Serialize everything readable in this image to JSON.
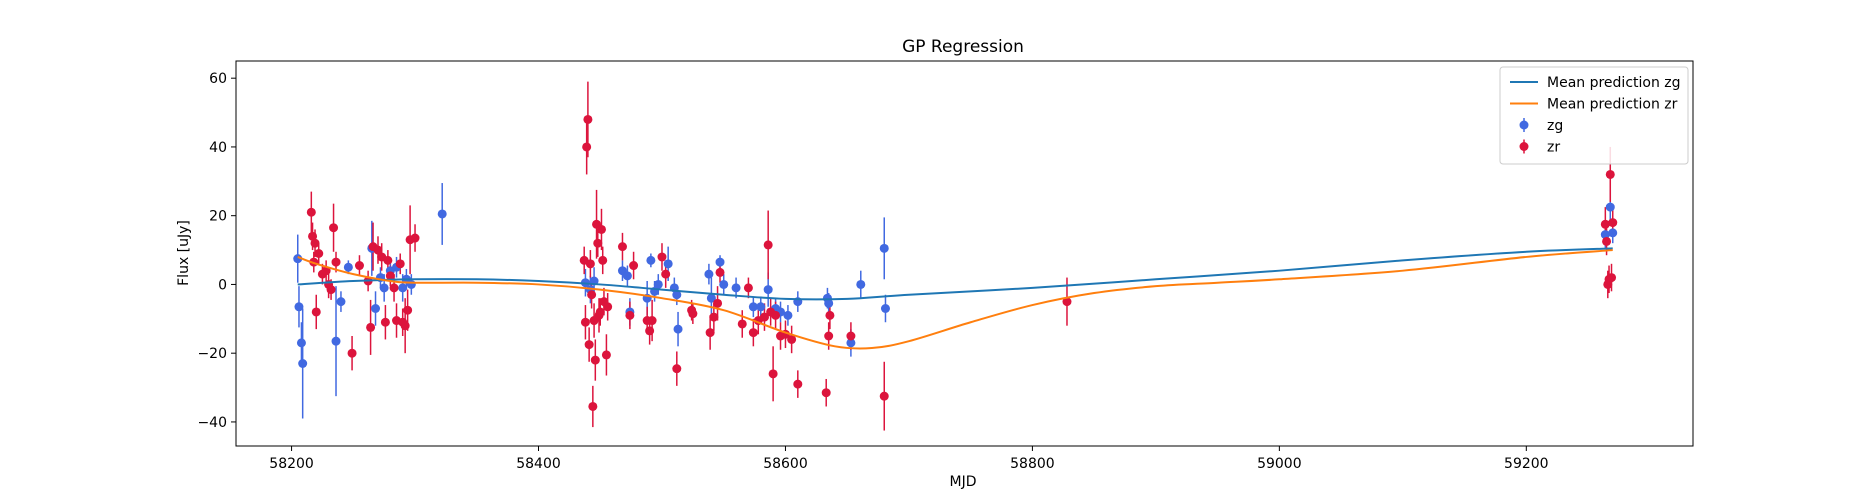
{
  "chart_data": {
    "type": "scatter",
    "title": "GP Regression",
    "xlabel": "MJD",
    "ylabel": "Flux [uJy]",
    "xlim": [
      58155,
      59335
    ],
    "ylim": [
      -47,
      65
    ],
    "xticks": [
      58200,
      58400,
      58600,
      58800,
      59000,
      59200
    ],
    "xtick_labels": [
      "58200",
      "58400",
      "58600",
      "58800",
      "59000",
      "59200"
    ],
    "yticks": [
      -40,
      -20,
      0,
      20,
      40,
      60
    ],
    "ytick_labels": [
      "−40",
      "−20",
      "0",
      "20",
      "40",
      "60"
    ],
    "legend_position": "top-right",
    "legend": [
      {
        "label": "Mean prediction zg",
        "kind": "line",
        "color": "#1f77b4"
      },
      {
        "label": "Mean prediction zr",
        "kind": "line",
        "color": "#ff7f0e"
      },
      {
        "label": "zg",
        "kind": "errorbar",
        "color": "#4169e1"
      },
      {
        "label": "zr",
        "kind": "errorbar",
        "color": "#dc143c"
      }
    ],
    "lines": [
      {
        "name": "Mean prediction zg",
        "color": "#1f77b4",
        "x": [
          58205,
          58250,
          58300,
          58350,
          58400,
          58450,
          58500,
          58550,
          58600,
          58650,
          58700,
          58800,
          58900,
          59000,
          59100,
          59200,
          59270
        ],
        "y": [
          0,
          1,
          1.5,
          1.5,
          1,
          0,
          -1.5,
          -3,
          -4.2,
          -4.2,
          -3,
          -1,
          1.5,
          4,
          7,
          9.5,
          10.5
        ]
      },
      {
        "name": "Mean prediction zr",
        "color": "#ff7f0e",
        "x": [
          58205,
          58220,
          58250,
          58280,
          58300,
          58350,
          58400,
          58450,
          58500,
          58550,
          58600,
          58640,
          58670,
          58700,
          58750,
          58800,
          58850,
          58900,
          58950,
          59000,
          59100,
          59200,
          59270
        ],
        "y": [
          8,
          6,
          3,
          1,
          0.5,
          0.5,
          0,
          -1.5,
          -4,
          -7.5,
          -14,
          -18,
          -18.5,
          -16.5,
          -11,
          -6,
          -2.5,
          -0.5,
          0.5,
          1.5,
          4,
          8,
          10
        ]
      }
    ],
    "series": [
      {
        "name": "zg",
        "color": "#4169e1",
        "points": [
          {
            "x": 58205,
            "y": 7.5,
            "err": 7
          },
          {
            "x": 58206,
            "y": -6.5,
            "err": 6
          },
          {
            "x": 58208,
            "y": -17,
            "err": 6
          },
          {
            "x": 58209,
            "y": -23,
            "err": 16
          },
          {
            "x": 58236,
            "y": -16.5,
            "err": 16
          },
          {
            "x": 58240,
            "y": -5,
            "err": 3
          },
          {
            "x": 58246,
            "y": 5,
            "err": 2
          },
          {
            "x": 58265,
            "y": 10.5,
            "err": 8
          },
          {
            "x": 58268,
            "y": -7,
            "err": 5
          },
          {
            "x": 58272,
            "y": 2,
            "err": 3
          },
          {
            "x": 58275,
            "y": -1,
            "err": 4
          },
          {
            "x": 58280,
            "y": 4,
            "err": 3
          },
          {
            "x": 58285,
            "y": 5,
            "err": 3
          },
          {
            "x": 58290,
            "y": -1,
            "err": 4
          },
          {
            "x": 58293,
            "y": 1.5,
            "err": 3
          },
          {
            "x": 58297,
            "y": 0,
            "err": 3
          },
          {
            "x": 58322,
            "y": 20.5,
            "err": 9
          },
          {
            "x": 58438,
            "y": 0.5,
            "err": 4
          },
          {
            "x": 58442,
            "y": -1.5,
            "err": 4
          },
          {
            "x": 58445,
            "y": 1,
            "err": 4
          },
          {
            "x": 58468,
            "y": 4,
            "err": 3
          },
          {
            "x": 58472,
            "y": 2.5,
            "err": 3
          },
          {
            "x": 58474,
            "y": -8,
            "err": 4
          },
          {
            "x": 58488,
            "y": -4,
            "err": 5
          },
          {
            "x": 58491,
            "y": 7,
            "err": 2
          },
          {
            "x": 58494,
            "y": -2,
            "err": 3
          },
          {
            "x": 58497,
            "y": 0,
            "err": 3
          },
          {
            "x": 58505,
            "y": 6,
            "err": 5
          },
          {
            "x": 58510,
            "y": -1,
            "err": 3
          },
          {
            "x": 58512,
            "y": -3,
            "err": 3
          },
          {
            "x": 58513,
            "y": -13,
            "err": 5
          },
          {
            "x": 58538,
            "y": 3,
            "err": 3
          },
          {
            "x": 58540,
            "y": -4,
            "err": 6
          },
          {
            "x": 58547,
            "y": 6.5,
            "err": 2
          },
          {
            "x": 58550,
            "y": 0,
            "err": 3
          },
          {
            "x": 58560,
            "y": -1,
            "err": 3
          },
          {
            "x": 58574,
            "y": -6.5,
            "err": 3
          },
          {
            "x": 58580,
            "y": -6.5,
            "err": 3
          },
          {
            "x": 58586,
            "y": -1.5,
            "err": 5
          },
          {
            "x": 58592,
            "y": -7,
            "err": 3
          },
          {
            "x": 58596,
            "y": -8,
            "err": 3
          },
          {
            "x": 58602,
            "y": -9,
            "err": 3
          },
          {
            "x": 58610,
            "y": -5,
            "err": 3
          },
          {
            "x": 58634,
            "y": -4,
            "err": 3
          },
          {
            "x": 58635,
            "y": -5.5,
            "err": 3
          },
          {
            "x": 58653,
            "y": -17,
            "err": 4
          },
          {
            "x": 58661,
            "y": 0,
            "err": 4
          },
          {
            "x": 58680,
            "y": 10.5,
            "err": 9
          },
          {
            "x": 58681,
            "y": -7,
            "err": 4
          },
          {
            "x": 59264,
            "y": 14.5,
            "err": 4
          },
          {
            "x": 59268,
            "y": 22.5,
            "err": 5
          },
          {
            "x": 59270,
            "y": 15,
            "err": 3
          }
        ]
      },
      {
        "name": "zr",
        "color": "#dc143c",
        "points": [
          {
            "x": 58216,
            "y": 21,
            "err": 6
          },
          {
            "x": 58217,
            "y": 14,
            "err": 4
          },
          {
            "x": 58218,
            "y": 6.5,
            "err": 3
          },
          {
            "x": 58219,
            "y": 12,
            "err": 4
          },
          {
            "x": 58220,
            "y": -8,
            "err": 5
          },
          {
            "x": 58222,
            "y": 9,
            "err": 3
          },
          {
            "x": 58225,
            "y": 3,
            "err": 3
          },
          {
            "x": 58228,
            "y": 4,
            "err": 3
          },
          {
            "x": 58230,
            "y": 0,
            "err": 4
          },
          {
            "x": 58232,
            "y": -1.5,
            "err": 3
          },
          {
            "x": 58234,
            "y": 16.5,
            "err": 7
          },
          {
            "x": 58236,
            "y": 6.5,
            "err": 3
          },
          {
            "x": 58249,
            "y": -20,
            "err": 5
          },
          {
            "x": 58255,
            "y": 5.5,
            "err": 3
          },
          {
            "x": 58262,
            "y": 1,
            "err": 3
          },
          {
            "x": 58264,
            "y": -12.5,
            "err": 8
          },
          {
            "x": 58266,
            "y": 11,
            "err": 7
          },
          {
            "x": 58270,
            "y": 10,
            "err": 4
          },
          {
            "x": 58273,
            "y": 8,
            "err": 4
          },
          {
            "x": 58276,
            "y": -11,
            "err": 5
          },
          {
            "x": 58278,
            "y": 7,
            "err": 3
          },
          {
            "x": 58280,
            "y": 2.5,
            "err": 3
          },
          {
            "x": 58283,
            "y": -1,
            "err": 4
          },
          {
            "x": 58285,
            "y": -10.5,
            "err": 5
          },
          {
            "x": 58288,
            "y": 6,
            "err": 3
          },
          {
            "x": 58290,
            "y": -11,
            "err": 4
          },
          {
            "x": 58292,
            "y": -12,
            "err": 8
          },
          {
            "x": 58294,
            "y": -7.5,
            "err": 6
          },
          {
            "x": 58296,
            "y": 13,
            "err": 10
          },
          {
            "x": 58300,
            "y": 13.5,
            "err": 4
          },
          {
            "x": 58437,
            "y": 7,
            "err": 4
          },
          {
            "x": 58438,
            "y": -11,
            "err": 5
          },
          {
            "x": 58439,
            "y": 40,
            "err": 8
          },
          {
            "x": 58440,
            "y": 48,
            "err": 11
          },
          {
            "x": 58441,
            "y": -17.5,
            "err": 5
          },
          {
            "x": 58442,
            "y": 6,
            "err": 4
          },
          {
            "x": 58443,
            "y": -3,
            "err": 4
          },
          {
            "x": 58444,
            "y": -35.5,
            "err": 6
          },
          {
            "x": 58445,
            "y": -10.5,
            "err": 5
          },
          {
            "x": 58446,
            "y": -22,
            "err": 6
          },
          {
            "x": 58447,
            "y": 17.5,
            "err": 10
          },
          {
            "x": 58448,
            "y": 12,
            "err": 4
          },
          {
            "x": 58449,
            "y": -9,
            "err": 5
          },
          {
            "x": 58450,
            "y": -8,
            "err": 4
          },
          {
            "x": 58451,
            "y": 16,
            "err": 6
          },
          {
            "x": 58452,
            "y": 7,
            "err": 4
          },
          {
            "x": 58453,
            "y": -5,
            "err": 4
          },
          {
            "x": 58455,
            "y": -20.5,
            "err": 6
          },
          {
            "x": 58456,
            "y": -6.5,
            "err": 4
          },
          {
            "x": 58468,
            "y": 11,
            "err": 4
          },
          {
            "x": 58474,
            "y": -9,
            "err": 4
          },
          {
            "x": 58477,
            "y": 5.5,
            "err": 4
          },
          {
            "x": 58488,
            "y": -10.5,
            "err": 4
          },
          {
            "x": 58490,
            "y": -13.5,
            "err": 4
          },
          {
            "x": 58492,
            "y": -10.5,
            "err": 6
          },
          {
            "x": 58500,
            "y": 8,
            "err": 4
          },
          {
            "x": 58503,
            "y": 3,
            "err": 4
          },
          {
            "x": 58512,
            "y": -24.5,
            "err": 5
          },
          {
            "x": 58524,
            "y": -7.5,
            "err": 3
          },
          {
            "x": 58525,
            "y": -8.5,
            "err": 3
          },
          {
            "x": 58539,
            "y": -14,
            "err": 5
          },
          {
            "x": 58542,
            "y": -9.5,
            "err": 4
          },
          {
            "x": 58545,
            "y": -5.5,
            "err": 5
          },
          {
            "x": 58547,
            "y": 3.5,
            "err": 3
          },
          {
            "x": 58565,
            "y": -11.5,
            "err": 4
          },
          {
            "x": 58570,
            "y": -1,
            "err": 3
          },
          {
            "x": 58574,
            "y": -14,
            "err": 4
          },
          {
            "x": 58578,
            "y": -10.5,
            "err": 4
          },
          {
            "x": 58583,
            "y": -9.5,
            "err": 4
          },
          {
            "x": 58586,
            "y": 11.5,
            "err": 10
          },
          {
            "x": 58588,
            "y": -8,
            "err": 4
          },
          {
            "x": 58590,
            "y": -26,
            "err": 8
          },
          {
            "x": 58592,
            "y": -9,
            "err": 4
          },
          {
            "x": 58596,
            "y": -15,
            "err": 4
          },
          {
            "x": 58600,
            "y": -14.5,
            "err": 4
          },
          {
            "x": 58605,
            "y": -16,
            "err": 4
          },
          {
            "x": 58610,
            "y": -29,
            "err": 4
          },
          {
            "x": 58633,
            "y": -31.5,
            "err": 4
          },
          {
            "x": 58635,
            "y": -15,
            "err": 4
          },
          {
            "x": 58636,
            "y": -9,
            "err": 4
          },
          {
            "x": 58653,
            "y": -15,
            "err": 4
          },
          {
            "x": 58680,
            "y": -32.5,
            "err": 10
          },
          {
            "x": 58828,
            "y": -5,
            "err": 7
          },
          {
            "x": 59264,
            "y": 17.5,
            "err": 5
          },
          {
            "x": 59265,
            "y": 12.5,
            "err": 4
          },
          {
            "x": 59266,
            "y": 0,
            "err": 4
          },
          {
            "x": 59267,
            "y": 1.5,
            "err": 4
          },
          {
            "x": 59268,
            "y": 32,
            "err": 8
          },
          {
            "x": 59269,
            "y": 2,
            "err": 4
          },
          {
            "x": 59270,
            "y": 18,
            "err": 4
          }
        ]
      }
    ]
  }
}
